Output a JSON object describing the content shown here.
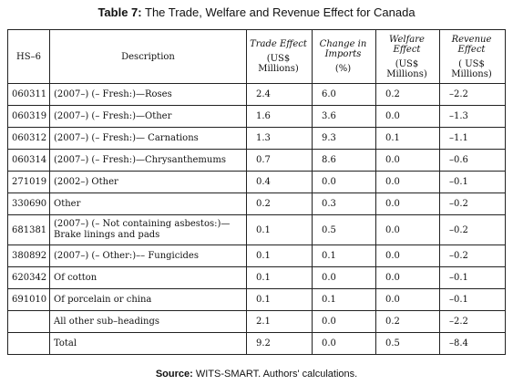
{
  "title": {
    "label": "Table 7:",
    "text": "The Trade, Welfare and Revenue Effect for Canada"
  },
  "headers": {
    "hs": "HS–6",
    "description": "Description",
    "trade_effect": "Trade Effect",
    "trade_effect_unit": "(US$ Millions)",
    "imports_change": "Change in Imports",
    "imports_change_unit": "(%)",
    "welfare_effect": "Welfare Effect",
    "welfare_effect_unit": "(US$ Millions)",
    "revenue_effect": "Revenue Effect",
    "revenue_effect_unit": "( US$ Millions)"
  },
  "rows": [
    {
      "hs": "060311",
      "description": "(2007–) (– Fresh:)—Roses",
      "trade": "2.4",
      "imports": "6.0",
      "welfare": "0.2",
      "revenue": "–2.2"
    },
    {
      "hs": "060319",
      "description": "(2007–) (– Fresh:)—Other",
      "trade": "1.6",
      "imports": "3.6",
      "welfare": "0.0",
      "revenue": "–1.3"
    },
    {
      "hs": "060312",
      "description": "(2007–) (– Fresh:)— Carnations",
      "trade": "1.3",
      "imports": "9.3",
      "welfare": "0.1",
      "revenue": "–1.1"
    },
    {
      "hs": "060314",
      "description": "(2007–) (– Fresh:)—Chrysanthemums",
      "trade": "0.7",
      "imports": "8.6",
      "welfare": "0.0",
      "revenue": "–0.6"
    },
    {
      "hs": "271019",
      "description": "(2002–) Other",
      "trade": "0.4",
      "imports": "0.0",
      "welfare": "0.0",
      "revenue": "–0.1"
    },
    {
      "hs": "330690",
      "description": "Other",
      "trade": "0.2",
      "imports": "0.3",
      "welfare": "0.0",
      "revenue": "–0.2"
    },
    {
      "hs": "681381",
      "description": "(2007–) (– Not containing asbestos:)—\nBrake linings and pads",
      "trade": "0.1",
      "imports": "0.5",
      "welfare": "0.0",
      "revenue": "–0.2"
    },
    {
      "hs": "380892",
      "description": "(2007–) (– Other:)–– Fungicides",
      "trade": "0.1",
      "imports": "0.1",
      "welfare": "0.0",
      "revenue": "–0.2"
    },
    {
      "hs": "620342",
      "description": "Of cotton",
      "trade": "0.1",
      "imports": "0.0",
      "welfare": "0.0",
      "revenue": "–0.1"
    },
    {
      "hs": "691010",
      "description": "Of porcelain or china",
      "trade": "0.1",
      "imports": "0.1",
      "welfare": "0.0",
      "revenue": "–0.1"
    },
    {
      "hs": "",
      "description": "All other sub–headings",
      "trade": "2.1",
      "imports": "0.0",
      "welfare": "0.2",
      "revenue": "–2.2"
    },
    {
      "hs": "",
      "description": "Total",
      "trade": "9.2",
      "imports": "0.0",
      "welfare": "0.5",
      "revenue": "–8.4"
    }
  ],
  "source": {
    "label": "Source:",
    "text": "WITS-SMART. Authors' calculations."
  }
}
